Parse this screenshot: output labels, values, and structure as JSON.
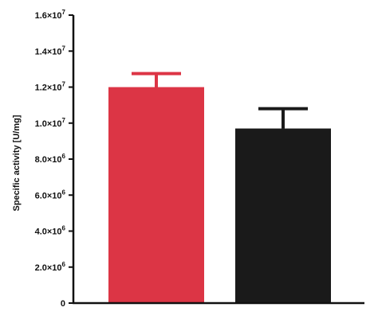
{
  "chart_data": {
    "type": "bar",
    "categories": [
      "",
      ""
    ],
    "values": [
      12000000,
      9700000
    ],
    "errors": [
      750000,
      1100000
    ],
    "colors": [
      "#dc3545",
      "#1a1a1a"
    ],
    "error_colors": [
      "#dc3545",
      "#1a1a1a"
    ],
    "title": "",
    "xlabel": "",
    "ylabel": "Specific activity [U/mg]",
    "ylim": [
      0,
      16000000
    ],
    "y_ticks": [
      0,
      2000000,
      4000000,
      6000000,
      8000000,
      10000000,
      12000000,
      14000000,
      16000000
    ],
    "y_tick_labels": [
      {
        "base": "0",
        "exp": ""
      },
      {
        "base": "2.0×10",
        "exp": "6"
      },
      {
        "base": "4.0×10",
        "exp": "6"
      },
      {
        "base": "6.0×10",
        "exp": "6"
      },
      {
        "base": "8.0×10",
        "exp": "6"
      },
      {
        "base": "1.0×10",
        "exp": "7"
      },
      {
        "base": "1.2×10",
        "exp": "7"
      },
      {
        "base": "1.4×10",
        "exp": "7"
      },
      {
        "base": "1.6×10",
        "exp": "7"
      }
    ],
    "grid": false,
    "legend": "none"
  }
}
